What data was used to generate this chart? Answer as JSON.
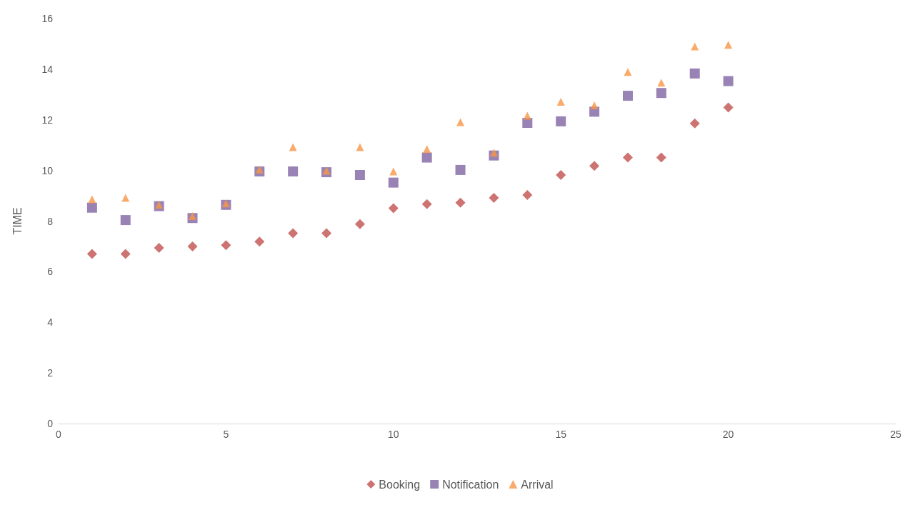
{
  "chart_data": {
    "type": "scatter",
    "ylabel": "TIME",
    "x": [
      1,
      2,
      3,
      4,
      5,
      6,
      7,
      8,
      9,
      10,
      11,
      12,
      13,
      14,
      15,
      16,
      17,
      18,
      19,
      20
    ],
    "xlim": [
      0,
      25
    ],
    "xticks": [
      0,
      5,
      10,
      15,
      20,
      25
    ],
    "ylim": [
      0,
      16
    ],
    "yticks": [
      0,
      2,
      4,
      6,
      8,
      10,
      12,
      14,
      16
    ],
    "grid": false,
    "legend": "bottom",
    "series": [
      {
        "name": "Booking",
        "color": "#c0504d",
        "marker": "diamond",
        "values": [
          6.7,
          6.7,
          6.94,
          7.0,
          7.05,
          7.19,
          7.52,
          7.52,
          7.88,
          8.51,
          8.67,
          8.73,
          8.92,
          9.03,
          9.82,
          10.18,
          10.51,
          10.51,
          11.86,
          12.49
        ]
      },
      {
        "name": "Notification",
        "color": "#8064a2",
        "marker": "square",
        "values": [
          8.53,
          8.04,
          8.59,
          8.12,
          8.64,
          9.96,
          9.96,
          9.93,
          9.82,
          9.52,
          10.51,
          10.02,
          10.59,
          11.88,
          11.94,
          12.32,
          12.95,
          13.06,
          13.83,
          13.53
        ]
      },
      {
        "name": "Arrival",
        "color": "#f79646",
        "marker": "triangle",
        "values": [
          8.86,
          8.92,
          8.64,
          8.2,
          8.7,
          10.04,
          10.92,
          9.99,
          10.92,
          9.96,
          10.84,
          11.91,
          10.7,
          12.16,
          12.71,
          12.57,
          13.89,
          13.47,
          14.9,
          14.96
        ]
      }
    ]
  }
}
